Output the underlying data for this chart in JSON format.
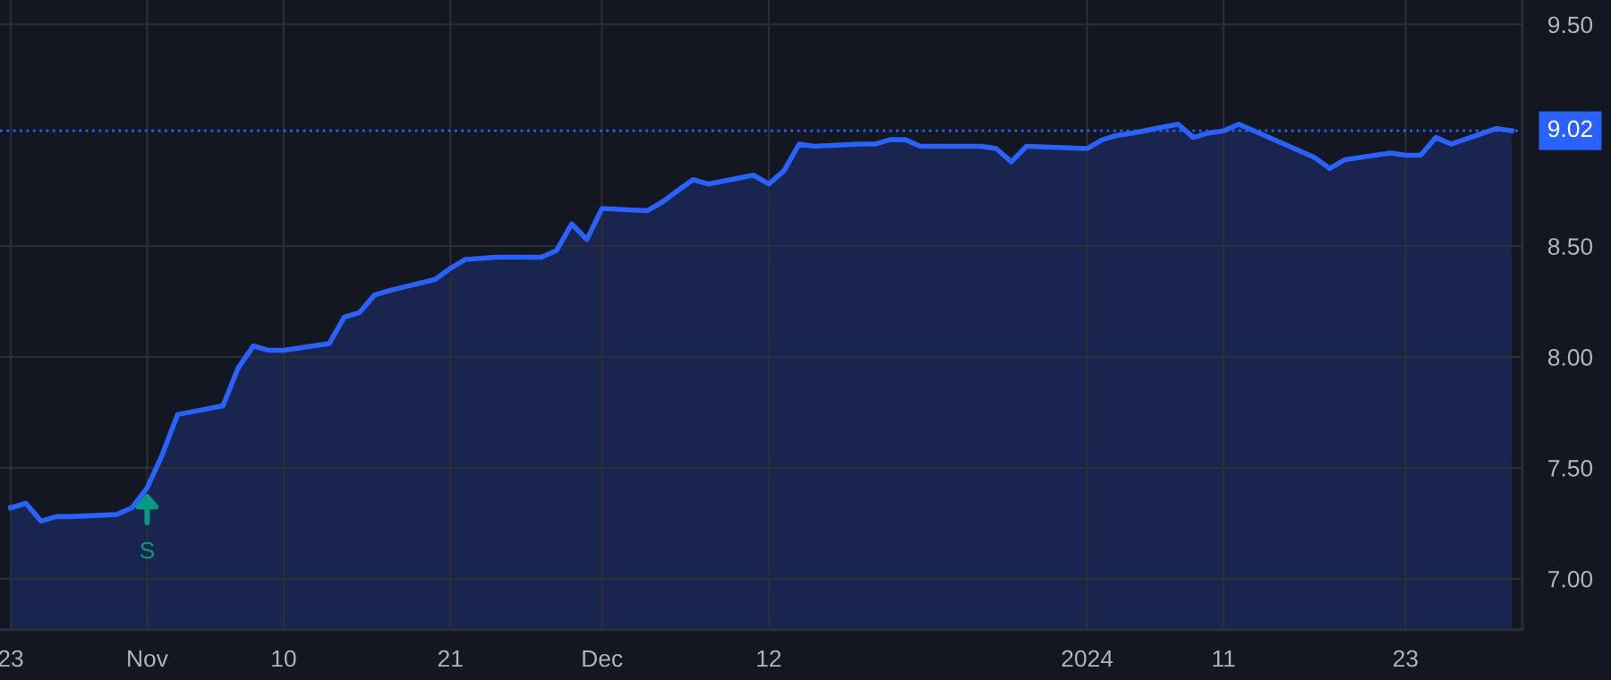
{
  "chart_data": {
    "type": "area",
    "x": [
      "2023-10-23",
      "2023-10-24",
      "2023-10-25",
      "2023-10-26",
      "2023-10-27",
      "2023-10-30",
      "2023-10-31",
      "2023-11-01",
      "2023-11-02",
      "2023-11-03",
      "2023-11-06",
      "2023-11-07",
      "2023-11-08",
      "2023-11-09",
      "2023-11-10",
      "2023-11-13",
      "2023-11-14",
      "2023-11-15",
      "2023-11-16",
      "2023-11-17",
      "2023-11-20",
      "2023-11-21",
      "2023-11-22",
      "2023-11-24",
      "2023-11-27",
      "2023-11-28",
      "2023-11-29",
      "2023-11-30",
      "2023-12-01",
      "2023-12-04",
      "2023-12-05",
      "2023-12-06",
      "2023-12-07",
      "2023-12-08",
      "2023-12-11",
      "2023-12-12",
      "2023-12-13",
      "2023-12-14",
      "2023-12-15",
      "2023-12-18",
      "2023-12-19",
      "2023-12-20",
      "2023-12-21",
      "2023-12-22",
      "2023-12-26",
      "2023-12-27",
      "2023-12-28",
      "2023-12-29",
      "2024-01-02",
      "2024-01-03",
      "2024-01-04",
      "2024-01-05",
      "2024-01-08",
      "2024-01-09",
      "2024-01-10",
      "2024-01-11",
      "2024-01-12",
      "2024-01-16",
      "2024-01-17",
      "2024-01-18",
      "2024-01-19",
      "2024-01-22",
      "2024-01-23",
      "2024-01-24",
      "2024-01-25",
      "2024-01-26",
      "2024-01-29",
      "2024-01-30"
    ],
    "series": [
      {
        "color": "#2962ff",
        "values": [
          7.32,
          7.34,
          7.26,
          7.28,
          7.28,
          7.29,
          7.32,
          7.41,
          7.56,
          7.74,
          7.78,
          7.95,
          8.05,
          8.03,
          8.03,
          8.06,
          8.18,
          8.2,
          8.28,
          8.3,
          8.35,
          8.4,
          8.44,
          8.45,
          8.45,
          8.48,
          8.6,
          8.53,
          8.67,
          8.66,
          8.7,
          8.75,
          8.8,
          8.78,
          8.82,
          8.78,
          8.84,
          8.96,
          8.95,
          8.96,
          8.96,
          8.98,
          8.98,
          8.95,
          8.95,
          8.94,
          8.88,
          8.95,
          8.94,
          8.98,
          9.0,
          9.01,
          9.05,
          8.99,
          9.01,
          9.02,
          9.05,
          8.93,
          8.9,
          8.85,
          8.89,
          8.92,
          8.91,
          8.91,
          8.99,
          8.96,
          9.03,
          9.02
        ]
      }
    ],
    "ylim": [
      6.77,
      9.61
    ],
    "yticks": [
      {
        "value": 7.0,
        "label": "7.00"
      },
      {
        "value": 7.5,
        "label": "7.50"
      },
      {
        "value": 8.0,
        "label": "8.00"
      },
      {
        "value": 8.5,
        "label": "8.50"
      },
      {
        "value": 9.5,
        "label": "9.50"
      }
    ],
    "xlim": [
      "2023-10-22T07:00",
      "2024-01-30T17:00"
    ],
    "xticks": [
      {
        "value": "2023-10-23",
        "label": "23"
      },
      {
        "value": "2023-11-01",
        "label": "Nov"
      },
      {
        "value": "2023-11-10",
        "label": "10"
      },
      {
        "value": "2023-11-21",
        "label": "21"
      },
      {
        "value": "2023-12-01",
        "label": "Dec"
      },
      {
        "value": "2023-12-12",
        "label": "12"
      },
      {
        "value": "2024-01-02",
        "label": "2024"
      },
      {
        "value": "2024-01-11",
        "label": "11"
      },
      {
        "value": "2024-01-23",
        "label": "23"
      }
    ],
    "ref_lines": [
      {
        "axis": "y",
        "value": 9.02,
        "label": "9.02",
        "color": "#2962ff",
        "line_style": "dotted"
      }
    ],
    "annotations": [
      {
        "text": "S",
        "x": "2023-11-01",
        "y": 7.41
      }
    ],
    "grid": true,
    "legend": false,
    "marker": "none",
    "line_style": "solid"
  }
}
